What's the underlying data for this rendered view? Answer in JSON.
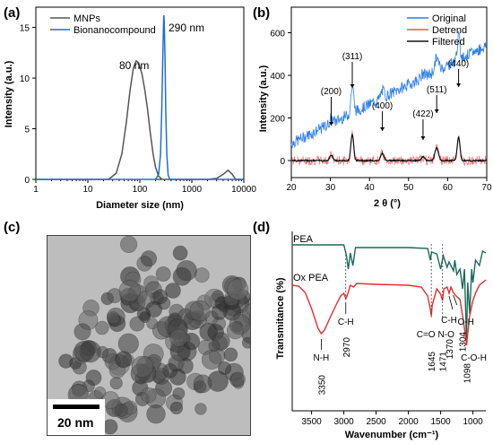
{
  "panels": {
    "a": {
      "letter": "(a)"
    },
    "b": {
      "letter": "(b)"
    },
    "c": {
      "letter": "(c)",
      "scale_bar": "20 nm"
    },
    "d": {
      "letter": "(d)"
    }
  },
  "chart_data": [
    {
      "type": "line",
      "panel": "a",
      "xlabel": "Diameter size (nm)",
      "ylabel": "Intensity (a.u.)",
      "xscale": "log",
      "xlim": [
        1,
        10000
      ],
      "ylim": [
        0,
        17
      ],
      "xticks": [
        "1",
        "10",
        "100",
        "1000",
        "10000"
      ],
      "yticks": [
        "0",
        "5",
        "10",
        "15"
      ],
      "legend": "top-left",
      "annotations": [
        "80 nm",
        "290 nm"
      ],
      "series": [
        {
          "name": "MNPs",
          "color": "#555555",
          "x": [
            25,
            35,
            45,
            55,
            65,
            75,
            85,
            95,
            110,
            125,
            140,
            160,
            180,
            200,
            230,
            270,
            320,
            2000,
            3000,
            4000,
            5000,
            6000,
            7000
          ],
          "y": [
            0,
            0.6,
            2.5,
            5.6,
            8.8,
            11,
            11.7,
            11.5,
            10.4,
            8.8,
            7,
            4.5,
            2.5,
            1.2,
            0.3,
            0,
            0,
            0,
            0.1,
            0.5,
            0.9,
            0.5,
            0
          ]
        },
        {
          "name": "Bionanocompound",
          "color": "#1f6fd6",
          "x": [
            200,
            230,
            250,
            265,
            275,
            285,
            290,
            295,
            305,
            315,
            330,
            350,
            380
          ],
          "y": [
            0,
            0.5,
            2.5,
            7,
            11.5,
            15.2,
            16.2,
            15.6,
            12,
            7,
            2.5,
            0.4,
            0
          ]
        }
      ]
    },
    {
      "type": "line",
      "panel": "b",
      "xlabel": "2 θ (°)",
      "ylabel": "Intensity (a.u.)",
      "xlim": [
        20,
        70
      ],
      "ylim": [
        -80,
        720
      ],
      "xticks": [
        "20",
        "30",
        "40",
        "50",
        "60",
        "70"
      ],
      "yticks": [
        "0",
        "200",
        "400",
        "600"
      ],
      "legend": "top-right",
      "peaks": [
        {
          "label": "(200)",
          "x": 30.2
        },
        {
          "label": "(311)",
          "x": 35.6
        },
        {
          "label": "(400)",
          "x": 43.3
        },
        {
          "label": "(422)",
          "x": 53.7
        },
        {
          "label": "(511)",
          "x": 57.2
        },
        {
          "label": "(440)",
          "x": 62.8
        }
      ],
      "series": [
        {
          "name": "Original",
          "color": "#2f7fe8"
        },
        {
          "name": "Detrend",
          "color": "#ee5555"
        },
        {
          "name": "Filtered",
          "color": "#111111"
        }
      ]
    },
    {
      "type": "line",
      "panel": "d",
      "xlabel": "Wavenumber (cm⁻¹)",
      "ylabel": "Transmitance (%)",
      "xlim": [
        3800,
        800
      ],
      "xticks": [
        "3500",
        "3000",
        "2500",
        "2000",
        "1500",
        "1000"
      ],
      "series": [
        {
          "name": "PEA",
          "color": "#1a6a5a"
        },
        {
          "name": "Ox PEA",
          "color": "#e62e2e"
        }
      ],
      "annotations": [
        {
          "label": "N-H",
          "value": "3350"
        },
        {
          "label": "C-H",
          "value": "2970"
        },
        {
          "label": "C=O",
          "value": "1645"
        },
        {
          "label": "N-O",
          "value": "1471"
        },
        {
          "label": "C-H",
          "value": "1370"
        },
        {
          "label": "C-O-H",
          "value": "1098"
        },
        {
          "label": "O-H",
          "value": "1304"
        }
      ]
    }
  ]
}
